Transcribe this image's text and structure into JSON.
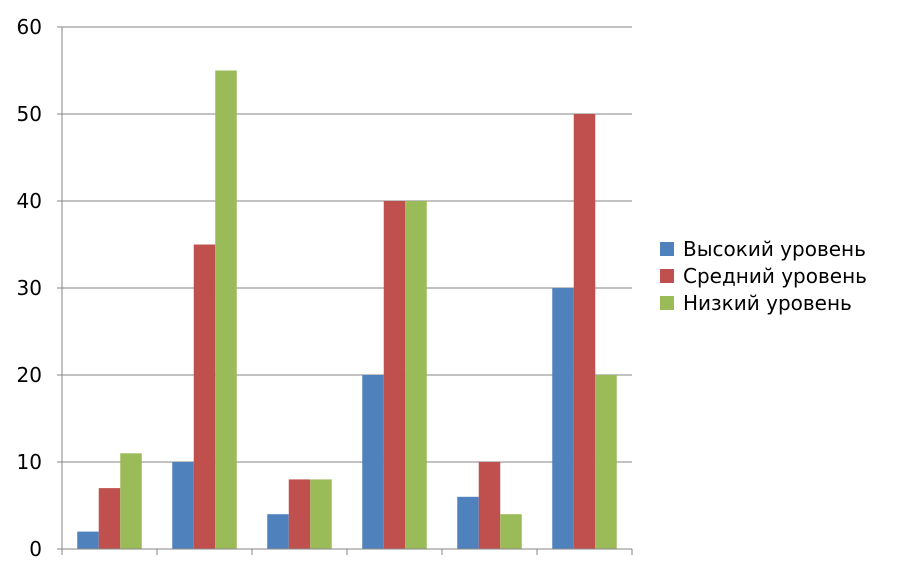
{
  "chart_data": {
    "type": "bar",
    "title": "",
    "xlabel": "",
    "ylabel": "",
    "categories": [
      "",
      "",
      "",
      "",
      "",
      ""
    ],
    "ylim": [
      0,
      60
    ],
    "y_ticks": [
      "0",
      "10",
      "20",
      "30",
      "40",
      "50",
      "60"
    ],
    "grid": "horizontal",
    "legend_position": "right",
    "series": [
      {
        "name": "Высокий уровень",
        "color": "#4f81bd",
        "values": [
          2,
          10,
          4,
          20,
          6,
          30
        ]
      },
      {
        "name": "Средний уровень",
        "color": "#c0504d",
        "values": [
          7,
          35,
          8,
          40,
          10,
          50
        ]
      },
      {
        "name": "Низкий уровень",
        "color": "#9bbb59",
        "values": [
          11,
          55,
          8,
          40,
          4,
          20
        ]
      }
    ]
  }
}
